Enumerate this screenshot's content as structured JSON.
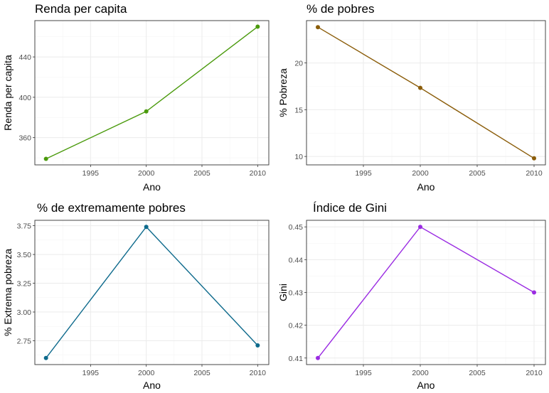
{
  "chart_data": [
    {
      "type": "line",
      "title": "Renda per capita",
      "xlabel": "Ano",
      "ylabel": "Renda per capita",
      "color": "#4a9a0c",
      "x": [
        1991,
        2000,
        2010
      ],
      "y": [
        339,
        386,
        470
      ],
      "xlim": [
        1990,
        2011
      ],
      "ylim": [
        333,
        476
      ],
      "xticks": [
        1995,
        2000,
        2005,
        2010
      ],
      "yticks": [
        360,
        400,
        440
      ],
      "grid": true
    },
    {
      "type": "line",
      "title": "% de pobres",
      "xlabel": "Ano",
      "ylabel": "% Pobreza",
      "color": "#8b5d0a",
      "x": [
        1991,
        2000,
        2010
      ],
      "y": [
        23.83,
        17.34,
        9.8
      ],
      "xlim": [
        1990,
        2011
      ],
      "ylim": [
        9.1,
        24.53
      ],
      "xticks": [
        1995,
        2000,
        2005,
        2010
      ],
      "yticks": [
        10,
        15,
        20
      ],
      "grid": true
    },
    {
      "type": "line",
      "title": "% de extremamente pobres",
      "xlabel": "Ano",
      "ylabel": "% Extrema pobreza",
      "color": "#0e6a8c",
      "x": [
        1991,
        2000,
        2010
      ],
      "y": [
        2.6,
        3.74,
        2.71
      ],
      "xlim": [
        1990,
        2011
      ],
      "ylim": [
        2.543,
        3.797
      ],
      "xticks": [
        1995,
        2000,
        2005,
        2010
      ],
      "yticks": [
        2.75,
        3.0,
        3.25,
        3.5,
        3.75
      ],
      "ytick_labels": [
        "2.75",
        "3.00",
        "3.25",
        "3.50",
        "3.75"
      ],
      "grid": true
    },
    {
      "type": "line",
      "title": "Índice de Gini",
      "xlabel": "Ano",
      "ylabel": "Gini",
      "color": "#9a2be2",
      "x": [
        1991,
        2000,
        2010
      ],
      "y": [
        0.41,
        0.45,
        0.43
      ],
      "xlim": [
        1990,
        2011
      ],
      "ylim": [
        0.408,
        0.452
      ],
      "xticks": [
        1995,
        2000,
        2005,
        2010
      ],
      "yticks": [
        0.41,
        0.42,
        0.43,
        0.44,
        0.45
      ],
      "ytick_labels": [
        "0.41",
        "0.42",
        "0.43",
        "0.44",
        "0.45"
      ],
      "grid": true
    }
  ]
}
